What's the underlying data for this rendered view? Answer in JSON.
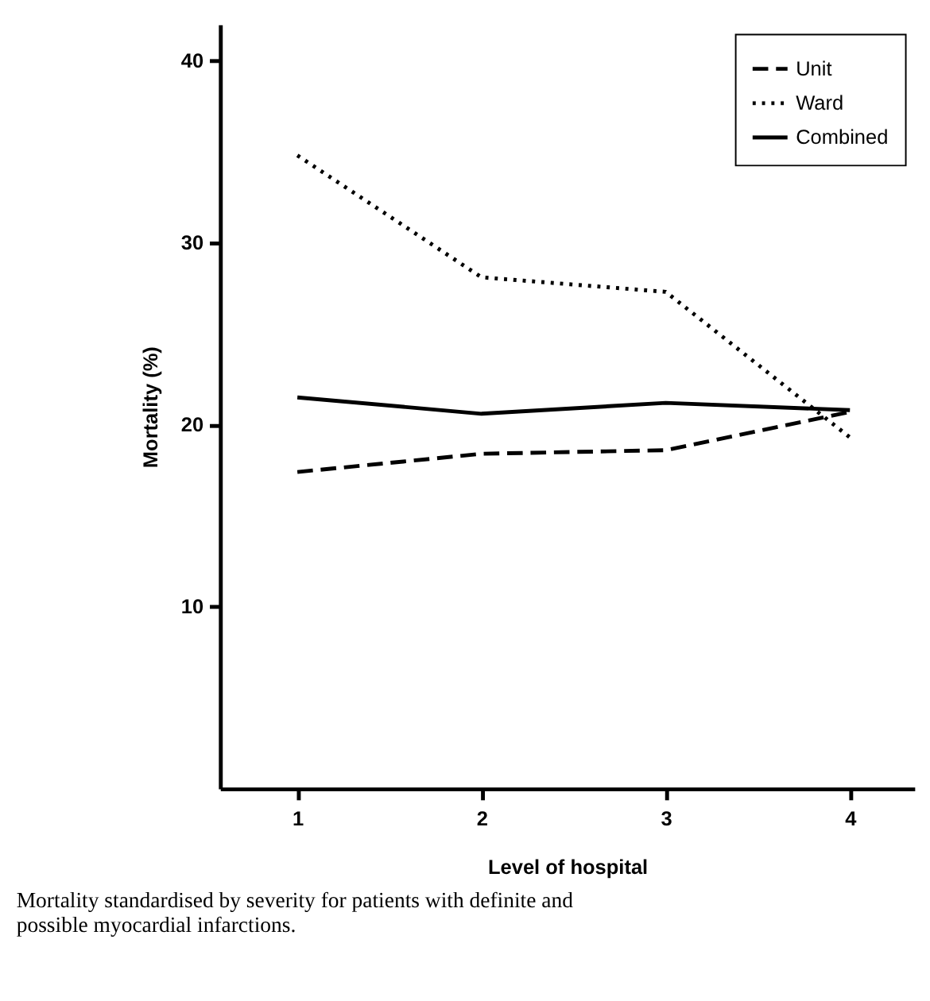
{
  "chart_data": {
    "type": "line",
    "xlabel": "Level of hospital",
    "ylabel": "Mortality (%)",
    "x": [
      1,
      2,
      3,
      4
    ],
    "series": [
      {
        "name": "Unit",
        "color": "#000000",
        "line_style": "dashed",
        "values": [
          17.4,
          18.4,
          18.6,
          20.7
        ]
      },
      {
        "name": "Ward",
        "color": "#000000",
        "line_style": "dotted",
        "values": [
          34.8,
          28.1,
          27.3,
          19.3
        ]
      },
      {
        "name": "Combined",
        "color": "#000000",
        "line_style": "solid",
        "values": [
          21.5,
          20.6,
          21.2,
          20.8
        ]
      }
    ],
    "xlim": [
      0.58,
      4.35
    ],
    "xticks": [
      1,
      2,
      3,
      4
    ],
    "ylim": [
      0,
      42
    ],
    "yticks": [
      10,
      20,
      30,
      40
    ],
    "grid": false,
    "legend": "top right",
    "marker": "none",
    "annotations": [
      "Mortality standardised by severity for patients with definite and possible myocardial infarctions."
    ]
  }
}
